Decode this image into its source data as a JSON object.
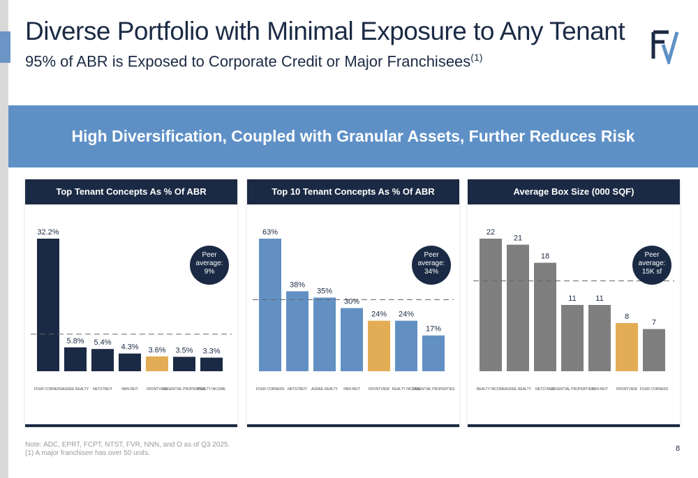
{
  "header": {
    "title": "Diverse Portfolio with Minimal Exposure to Any Tenant",
    "subtitle": "95% of ABR is Exposed to Corporate Credit or Major Franchisees",
    "subtitle_sup": "(1)"
  },
  "banner": "High Diversification, Coupled with Granular Assets, Further Reduces Risk",
  "colors": {
    "navy": "#1b2a44",
    "blue": "#6290c3",
    "gold": "#e2ad55",
    "gray": "#7f7f7f"
  },
  "chart_data": [
    {
      "type": "bar",
      "title": "Top Tenant Concepts As % Of ABR",
      "categories": [
        "Four Corners",
        "Agree Realty",
        "Netstreit",
        "NNN REIT",
        "FrontView",
        "Essential Properties",
        "Realty Income"
      ],
      "values": [
        32.2,
        5.8,
        5.4,
        4.3,
        3.6,
        3.5,
        3.3
      ],
      "labels": [
        "32.2%",
        "5.8%",
        "5.4%",
        "4.3%",
        "3.6%",
        "3.5%",
        "3.3%"
      ],
      "peer_average": 9,
      "peer_label": [
        "Peer",
        "average:",
        "9%"
      ],
      "ymax": 32.2,
      "color": "navy",
      "highlight": 4
    },
    {
      "type": "bar",
      "title": "Top 10 Tenant Concepts As % Of ABR",
      "categories": [
        "Four Corners",
        "Netstreit",
        "Agree Realty",
        "NNN REIT",
        "FrontView",
        "Realty Income",
        "Essential Properties"
      ],
      "values": [
        63,
        38,
        35,
        30,
        24,
        24,
        17
      ],
      "labels": [
        "63%",
        "38%",
        "35%",
        "30%",
        "24%",
        "24%",
        "17%"
      ],
      "peer_average": 34,
      "peer_label": [
        "Peer",
        "average:",
        "34%"
      ],
      "ymax": 63,
      "color": "blue",
      "highlight": 4
    },
    {
      "type": "bar",
      "title": "Average Box Size (000 SQF)",
      "categories": [
        "Realty Income",
        "Agree Realty",
        "Netstreit",
        "Essential Properties",
        "NNN REIT",
        "FrontView",
        "Four Corners"
      ],
      "values": [
        22,
        21,
        18,
        11,
        11,
        8,
        7
      ],
      "labels": [
        "22",
        "21",
        "18",
        "11",
        "11",
        "8",
        "7"
      ],
      "peer_average": 15,
      "peer_label": [
        "Peer",
        "average:",
        "15K sf"
      ],
      "ymax": 22,
      "color": "gray",
      "highlight": 5
    }
  ],
  "footnotes": [
    "Note: ADC, EPRT, FCPT, NTST, FVR, NNN, and O as of Q3 2025.",
    "(1) A major franchisee has over 50 units."
  ],
  "page_number": "8"
}
